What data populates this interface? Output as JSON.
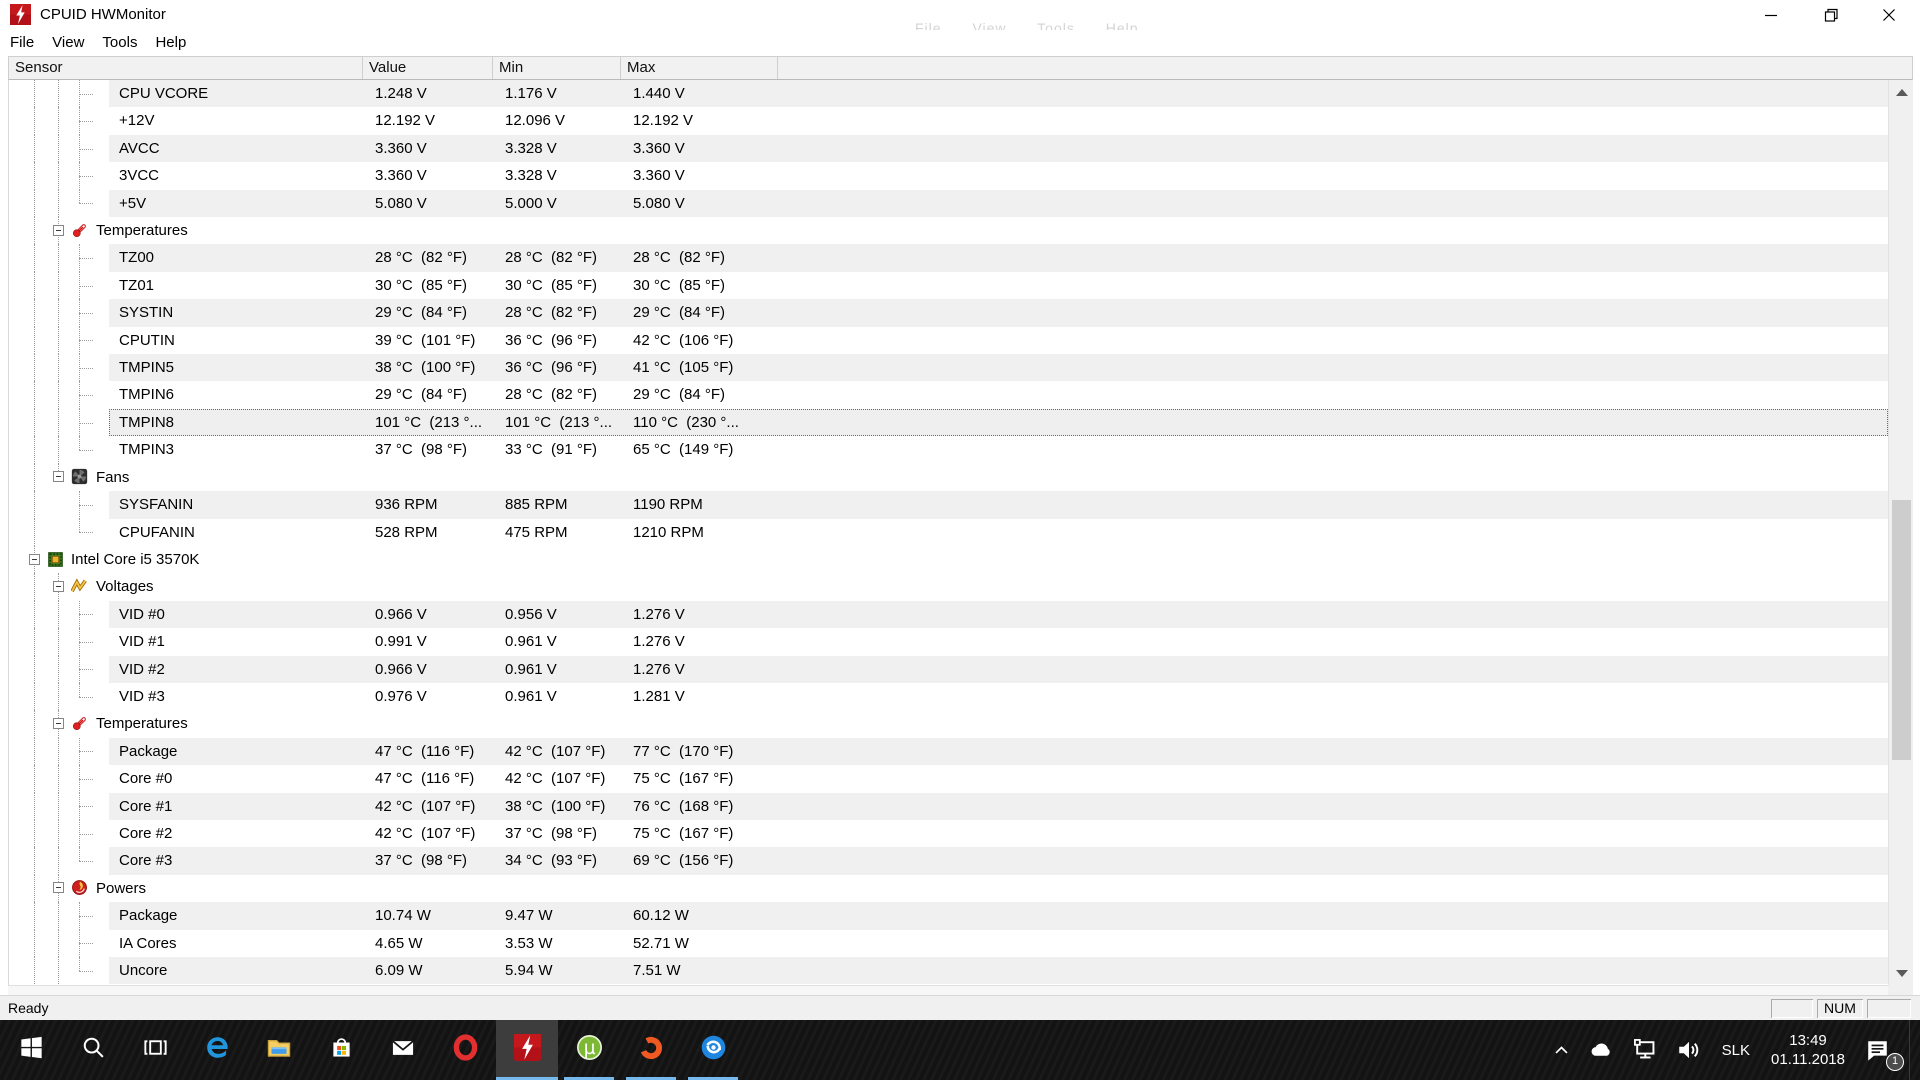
{
  "window": {
    "title": "CPUID HWMonitor",
    "menu": [
      "File",
      "View",
      "Tools",
      "Help"
    ],
    "ghost_menu": "File View Tools Help",
    "controls": {
      "minimize": "minimize",
      "restore": "restore",
      "close": "close"
    }
  },
  "columns": [
    "Sensor",
    "Value",
    "Min",
    "Max"
  ],
  "rows": [
    {
      "type": "sensor",
      "label": "CPU VCORE",
      "value": "1.248 V",
      "min": "1.176 V",
      "max": "1.440 V",
      "g": "lls"
    },
    {
      "type": "sensor",
      "label": "+12V",
      "value": "12.192 V",
      "min": "12.096 V",
      "max": "12.192 V",
      "g": "lls"
    },
    {
      "type": "sensor",
      "label": "AVCC",
      "value": "3.360 V",
      "min": "3.328 V",
      "max": "3.360 V",
      "g": "lls"
    },
    {
      "type": "sensor",
      "label": "3VCC",
      "value": "3.360 V",
      "min": "3.328 V",
      "max": "3.360 V",
      "g": "lls"
    },
    {
      "type": "sensor",
      "label": "+5V",
      "value": "5.080 V",
      "min": "5.000 V",
      "max": "5.080 V",
      "g": "llc"
    },
    {
      "type": "group",
      "label": "Temperatures",
      "icon": "thermometer-icon",
      "g": "le-"
    },
    {
      "type": "sensor",
      "label": "TZ00",
      "value": "28 °C  (82 °F)",
      "min": "28 °C  (82 °F)",
      "max": "28 °C  (82 °F)",
      "g": "lls"
    },
    {
      "type": "sensor",
      "label": "TZ01",
      "value": "30 °C  (85 °F)",
      "min": "30 °C  (85 °F)",
      "max": "30 °C  (85 °F)",
      "g": "lls"
    },
    {
      "type": "sensor",
      "label": "SYSTIN",
      "value": "29 °C  (84 °F)",
      "min": "28 °C  (82 °F)",
      "max": "29 °C  (84 °F)",
      "g": "lls"
    },
    {
      "type": "sensor",
      "label": "CPUTIN",
      "value": "39 °C  (101 °F)",
      "min": "36 °C  (96 °F)",
      "max": "42 °C  (106 °F)",
      "g": "lls"
    },
    {
      "type": "sensor",
      "label": "TMPIN5",
      "value": "38 °C  (100 °F)",
      "min": "36 °C  (96 °F)",
      "max": "41 °C  (105 °F)",
      "g": "lls"
    },
    {
      "type": "sensor",
      "label": "TMPIN6",
      "value": "29 °C  (84 °F)",
      "min": "28 °C  (82 °F)",
      "max": "29 °C  (84 °F)",
      "g": "lls"
    },
    {
      "type": "sensor",
      "label": "TMPIN8",
      "value": "101 °C  (213 °...",
      "min": "101 °C  (213 °...",
      "max": "110 °C  (230 °...",
      "g": "lls",
      "selected": true
    },
    {
      "type": "sensor",
      "label": "TMPIN3",
      "value": "37 °C  (98 °F)",
      "min": "33 °C  (91 °F)",
      "max": "65 °C  (149 °F)",
      "g": "llc"
    },
    {
      "type": "group",
      "label": "Fans",
      "icon": "fan-icon",
      "g": "lE-"
    },
    {
      "type": "sensor",
      "label": "SYSFANIN",
      "value": "936 RPM",
      "min": "885 RPM",
      "max": "1190 RPM",
      "g": "l-s"
    },
    {
      "type": "sensor",
      "label": "CPUFANIN",
      "value": "528 RPM",
      "min": "475 RPM",
      "max": "1210 RPM",
      "g": "l-c"
    },
    {
      "type": "root",
      "label": "Intel Core i5 3570K",
      "icon": "chip-icon",
      "g": "e--"
    },
    {
      "type": "group",
      "label": "Voltages",
      "icon": "voltage-icon",
      "g": "le-"
    },
    {
      "type": "sensor",
      "label": "VID #0",
      "value": "0.966 V",
      "min": "0.956 V",
      "max": "1.276 V",
      "g": "lls"
    },
    {
      "type": "sensor",
      "label": "VID #1",
      "value": "0.991 V",
      "min": "0.961 V",
      "max": "1.276 V",
      "g": "lls"
    },
    {
      "type": "sensor",
      "label": "VID #2",
      "value": "0.966 V",
      "min": "0.961 V",
      "max": "1.276 V",
      "g": "lls"
    },
    {
      "type": "sensor",
      "label": "VID #3",
      "value": "0.976 V",
      "min": "0.961 V",
      "max": "1.281 V",
      "g": "llc"
    },
    {
      "type": "group",
      "label": "Temperatures",
      "icon": "thermometer-icon",
      "g": "le-"
    },
    {
      "type": "sensor",
      "label": "Package",
      "value": "47 °C  (116 °F)",
      "min": "42 °C  (107 °F)",
      "max": "77 °C  (170 °F)",
      "g": "lls"
    },
    {
      "type": "sensor",
      "label": "Core #0",
      "value": "47 °C  (116 °F)",
      "min": "42 °C  (107 °F)",
      "max": "75 °C  (167 °F)",
      "g": "lls"
    },
    {
      "type": "sensor",
      "label": "Core #1",
      "value": "42 °C  (107 °F)",
      "min": "38 °C  (100 °F)",
      "max": "76 °C  (168 °F)",
      "g": "lls"
    },
    {
      "type": "sensor",
      "label": "Core #2",
      "value": "42 °C  (107 °F)",
      "min": "37 °C  (98 °F)",
      "max": "75 °C  (167 °F)",
      "g": "lls"
    },
    {
      "type": "sensor",
      "label": "Core #3",
      "value": "37 °C  (98 °F)",
      "min": "34 °C  (93 °F)",
      "max": "69 °C  (156 °F)",
      "g": "llc"
    },
    {
      "type": "group",
      "label": "Powers",
      "icon": "power-icon",
      "g": "le-"
    },
    {
      "type": "sensor",
      "label": "Package",
      "value": "10.74 W",
      "min": "9.47 W",
      "max": "60.12 W",
      "g": "lls"
    },
    {
      "type": "sensor",
      "label": "IA Cores",
      "value": "4.65 W",
      "min": "3.53 W",
      "max": "52.71 W",
      "g": "lls"
    },
    {
      "type": "sensor",
      "label": "Uncore",
      "value": "6.09 W",
      "min": "5.94 W",
      "max": "7.51 W",
      "g": "llc"
    }
  ],
  "statusbar": {
    "left": "Ready",
    "pane1": "",
    "pane2": "NUM",
    "pane3": ""
  },
  "taskbar": {
    "apps": [
      {
        "name": "start",
        "icon": "windows-logo-icon",
        "active": false,
        "running": false
      },
      {
        "name": "search",
        "icon": "search-icon",
        "active": false,
        "running": false
      },
      {
        "name": "task-view",
        "icon": "task-view-icon",
        "active": false,
        "running": false
      },
      {
        "name": "edge",
        "icon": "edge-icon",
        "active": false,
        "running": false
      },
      {
        "name": "file-explorer",
        "icon": "file-explorer-icon",
        "active": false,
        "running": false
      },
      {
        "name": "store",
        "icon": "store-icon",
        "active": false,
        "running": false
      },
      {
        "name": "mail",
        "icon": "mail-icon",
        "active": false,
        "running": false
      },
      {
        "name": "opera",
        "icon": "opera-icon",
        "active": false,
        "running": false
      },
      {
        "name": "hwmonitor",
        "icon": "hwmonitor-icon",
        "active": true,
        "running": true
      },
      {
        "name": "utorrent",
        "icon": "utorrent-icon",
        "active": false,
        "running": true
      },
      {
        "name": "origin",
        "icon": "origin-icon",
        "active": false,
        "running": true
      },
      {
        "name": "uplay",
        "icon": "uplay-icon",
        "active": false,
        "running": true
      }
    ],
    "tray": {
      "language": "SLK",
      "time": "13:49",
      "date": "01.11.2018",
      "notification_count": "1"
    }
  },
  "colors": {
    "accent": "#76b9ed",
    "app_red": "#b11117",
    "shaded_row": "#f0f0f0",
    "taskbar_bg": "#141414",
    "active_app_bg": "#3d3d3d"
  }
}
